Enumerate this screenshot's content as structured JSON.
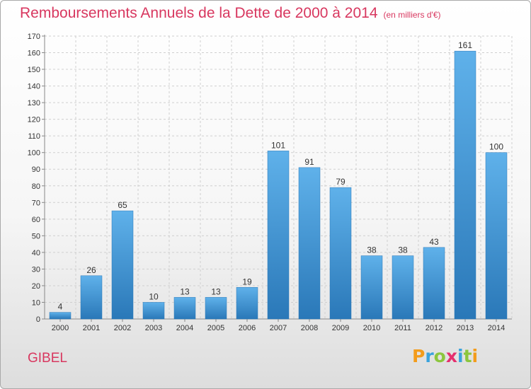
{
  "title": "Remboursements Annuels de la Dette de 2000 à 2014",
  "subtitle": "(en milliers d'€)",
  "footer_label": "GIBEL",
  "logo": {
    "text": "Proxiti",
    "letters": [
      {
        "char": "P",
        "color": "#f39c1b"
      },
      {
        "char": "r",
        "color": "#3aa3dd"
      },
      {
        "char": "o",
        "color": "#8cc63e"
      },
      {
        "char": "x",
        "color": "#e5306e"
      },
      {
        "char": "i",
        "color": "#3aa3dd"
      },
      {
        "char": "t",
        "color": "#8cc63e"
      },
      {
        "char": "i",
        "color": "#f39c1b"
      }
    ]
  },
  "colors": {
    "title": "#d8375f",
    "bar_light": "#5fb1ea",
    "bar_dark": "#2a78b8",
    "grid": "#cfcfcf",
    "text": "#333333"
  },
  "chart_data": {
    "type": "bar",
    "categories": [
      "2000",
      "2001",
      "2002",
      "2003",
      "2004",
      "2005",
      "2006",
      "2007",
      "2008",
      "2009",
      "2010",
      "2011",
      "2012",
      "2013",
      "2014"
    ],
    "values": [
      4,
      26,
      65,
      10,
      13,
      13,
      19,
      101,
      91,
      79,
      38,
      38,
      43,
      161,
      100
    ],
    "title": "Remboursements Annuels de la Dette de 2000 à 2014",
    "subtitle": "(en milliers d'€)",
    "xlabel": "",
    "ylabel": "",
    "ylim": [
      0,
      170
    ],
    "yticks": [
      0,
      10,
      20,
      30,
      40,
      50,
      60,
      70,
      80,
      90,
      100,
      110,
      120,
      130,
      140,
      150,
      160,
      170
    ],
    "grid": true,
    "legend": "none"
  }
}
